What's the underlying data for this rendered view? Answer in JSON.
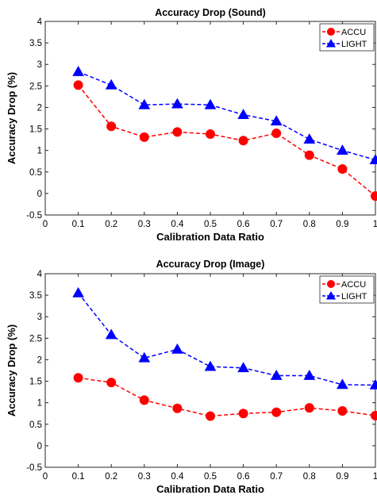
{
  "chart_data": [
    {
      "type": "line",
      "title": "Accuracy Drop (Sound)",
      "xlabel": "Calibration Data Ratio",
      "ylabel": "Accuracy Drop (%)",
      "xlim": [
        0,
        1
      ],
      "ylim": [
        -0.5,
        4
      ],
      "xticks": [
        "0",
        "0.1",
        "0.2",
        "0.3",
        "0.4",
        "0.5",
        "0.6",
        "0.7",
        "0.8",
        "0.9",
        "1"
      ],
      "yticks": [
        "-0.5",
        "0",
        "0.5",
        "1",
        "1.5",
        "2",
        "2.5",
        "3",
        "3.5",
        "4"
      ],
      "grid": false,
      "legend": "top-right",
      "x": [
        0.1,
        0.2,
        0.3,
        0.4,
        0.5,
        0.6,
        0.7,
        0.8,
        0.9,
        1.0
      ],
      "series": [
        {
          "name": "ACCU",
          "color": "#ff0000",
          "marker": "circle",
          "values": [
            2.52,
            1.56,
            1.31,
            1.43,
            1.38,
            1.23,
            1.4,
            0.89,
            0.57,
            -0.06
          ]
        },
        {
          "name": "LIGHT",
          "color": "#0000ff",
          "marker": "triangle",
          "values": [
            2.83,
            2.52,
            2.06,
            2.08,
            2.06,
            1.83,
            1.68,
            1.26,
            1.0,
            0.78
          ]
        }
      ]
    },
    {
      "type": "line",
      "title": "Accuracy Drop (Image)",
      "xlabel": "Calibration Data Ratio",
      "ylabel": "Accuracy Drop (%)",
      "xlim": [
        0,
        1
      ],
      "ylim": [
        -0.5,
        4
      ],
      "xticks": [
        "0",
        "0.1",
        "0.2",
        "0.3",
        "0.4",
        "0.5",
        "0.6",
        "0.7",
        "0.8",
        "0.9",
        "1"
      ],
      "yticks": [
        "-0.5",
        "0",
        "0.5",
        "1",
        "1.5",
        "2",
        "2.5",
        "3",
        "3.5",
        "4"
      ],
      "grid": false,
      "legend": "top-right",
      "x": [
        0.1,
        0.2,
        0.3,
        0.4,
        0.5,
        0.6,
        0.7,
        0.8,
        0.9,
        1.0
      ],
      "series": [
        {
          "name": "ACCU",
          "color": "#ff0000",
          "marker": "circle",
          "values": [
            1.58,
            1.47,
            1.06,
            0.87,
            0.69,
            0.75,
            0.78,
            0.88,
            0.81,
            0.7
          ]
        },
        {
          "name": "LIGHT",
          "color": "#0000ff",
          "marker": "triangle",
          "values": [
            3.55,
            2.58,
            2.04,
            2.24,
            1.84,
            1.81,
            1.63,
            1.63,
            1.42,
            1.41
          ]
        }
      ]
    }
  ]
}
